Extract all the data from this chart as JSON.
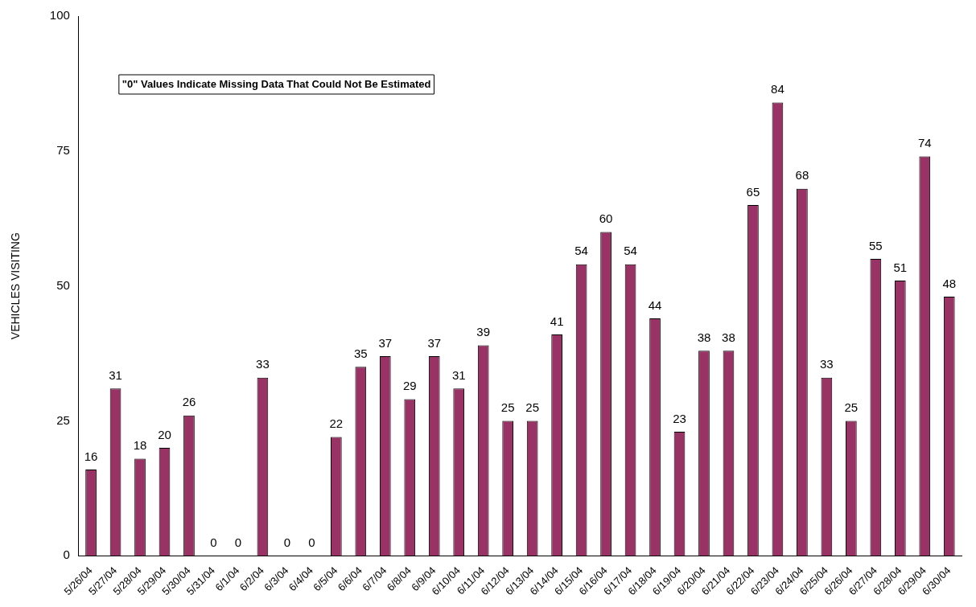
{
  "chart_data": {
    "type": "bar",
    "ylabel": "VEHICLES VISITING",
    "categories": [
      "5/26/04",
      "5/27/04",
      "5/28/04",
      "5/29/04",
      "5/30/04",
      "5/31/04",
      "6/1/04",
      "6/2/04",
      "6/3/04",
      "6/4/04",
      "6/5/04",
      "6/6/04",
      "6/7/04",
      "6/8/04",
      "6/9/04",
      "6/10/04",
      "6/11/04",
      "6/12/04",
      "6/13/04",
      "6/14/04",
      "6/15/04",
      "6/16/04",
      "6/17/04",
      "6/18/04",
      "6/19/04",
      "6/20/04",
      "6/21/04",
      "6/22/04",
      "6/23/04",
      "6/24/04",
      "6/25/04",
      "6/26/04",
      "6/27/04",
      "6/28/04",
      "6/29/04",
      "6/30/04"
    ],
    "values": [
      16,
      31,
      18,
      20,
      26,
      0,
      0,
      33,
      0,
      0,
      22,
      35,
      37,
      29,
      37,
      31,
      39,
      25,
      25,
      41,
      54,
      60,
      54,
      44,
      23,
      38,
      38,
      65,
      84,
      68,
      33,
      25,
      55,
      51,
      74,
      48
    ],
    "color": "#993366",
    "ylim": [
      0,
      100
    ],
    "yticks": [
      0,
      25,
      50,
      75,
      100
    ],
    "grid": false,
    "legend": false,
    "data_labels": true,
    "annotations": [
      "\"0\" Values Indicate Missing Data That Could Not Be Estimated"
    ]
  }
}
